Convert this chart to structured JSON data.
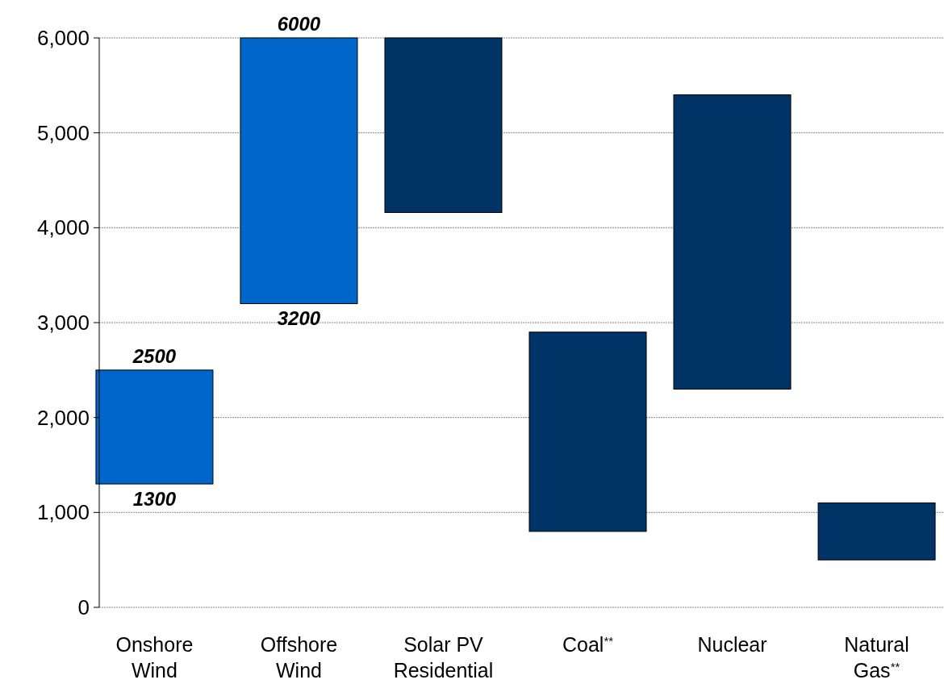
{
  "chart_data": {
    "type": "bar",
    "categories": [
      "Onshore Wind",
      "Offshore Wind",
      "Solar PV Residential",
      "Coal$^{**}$",
      "Nuclear",
      "Natural Gas$^{**}$"
    ],
    "base": [
      1300,
      3200,
      4160,
      800,
      2300,
      500
    ],
    "values": [
      1200,
      2800,
      1840,
      2100,
      3100,
      600
    ],
    "colors": [
      "#0066cc",
      "#0066cc",
      "#003366",
      "#003366",
      "#003366",
      "#003366"
    ],
    "ylim": [
      0,
      6000
    ],
    "yticks": [
      {
        "value": 0,
        "label": "0"
      },
      {
        "value": 1000,
        "label": "1,000"
      },
      {
        "value": 2000,
        "label": "2,000"
      },
      {
        "value": 3000,
        "label": "3,000"
      },
      {
        "value": 4000,
        "label": "4,000"
      },
      {
        "value": 5000,
        "label": "5,000"
      },
      {
        "value": 6000,
        "label": "6,000"
      }
    ],
    "grid": "y",
    "annotations": [
      {
        "text": "2500",
        "x": "Onshore Wind",
        "y": 2500
      },
      {
        "text": "1300",
        "x": "Onshore Wind",
        "y": 1300
      },
      {
        "text": "6000",
        "x": "Offshore Wind",
        "y": 6000
      },
      {
        "text": "3200",
        "x": "Offshore Wind",
        "y": 3200
      }
    ]
  }
}
